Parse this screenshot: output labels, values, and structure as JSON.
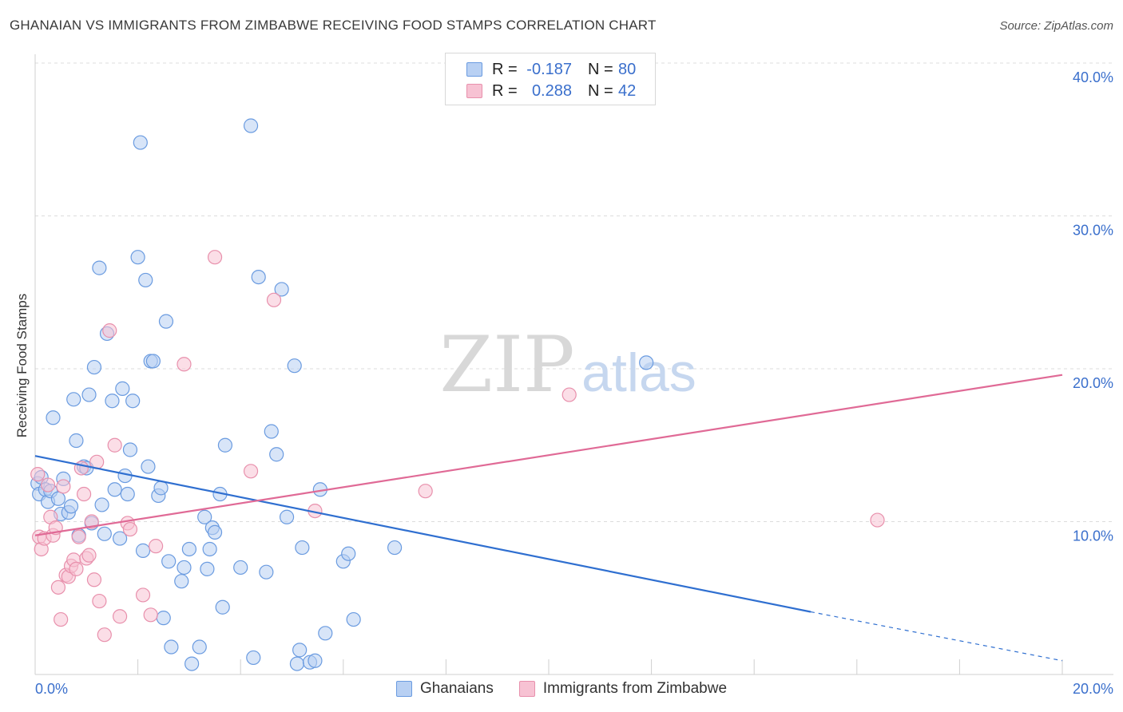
{
  "chart_data": {
    "type": "scatter",
    "title": "GHANAIAN VS IMMIGRANTS FROM ZIMBABWE RECEIVING FOOD STAMPS CORRELATION CHART",
    "source": "Source: ZipAtlas.com",
    "xlabel": "",
    "ylabel": "Receiving Food Stamps",
    "xlim": [
      0,
      20
    ],
    "ylim": [
      0,
      40
    ],
    "x_tick_labels": [
      "0.0%",
      "20.0%"
    ],
    "y_tick_labels": [
      "10.0%",
      "20.0%",
      "30.0%",
      "40.0%"
    ],
    "y_ticks": [
      10,
      20,
      30,
      40
    ],
    "grid": true,
    "watermark": "ZIPatlas",
    "legend": {
      "position": "top-center",
      "entries": [
        {
          "r_label": "R =",
          "r_value": "-0.187",
          "n_label": "N =",
          "n_value": "80"
        },
        {
          "r_label": "R =",
          "r_value": "0.288",
          "n_label": "N =",
          "n_value": "42"
        }
      ]
    },
    "series": [
      {
        "name": "Ghanaians",
        "color": "#6a9be0",
        "fill": "#b8d0f3",
        "line_color": "#2f6fd0",
        "trend": {
          "x0": 0,
          "y0": 14.3,
          "x1": 15.1,
          "y1": 4.1,
          "dashed_to_x": 20,
          "dashed_to_y": 0.9
        },
        "points": [
          [
            0.05,
            12.5
          ],
          [
            0.08,
            11.8
          ],
          [
            0.12,
            12.9
          ],
          [
            0.2,
            12.1
          ],
          [
            0.25,
            11.3
          ],
          [
            0.3,
            12.0
          ],
          [
            0.35,
            16.8
          ],
          [
            0.45,
            11.5
          ],
          [
            0.5,
            10.5
          ],
          [
            0.55,
            12.8
          ],
          [
            0.65,
            10.6
          ],
          [
            0.7,
            11.0
          ],
          [
            0.75,
            18.0
          ],
          [
            0.8,
            15.3
          ],
          [
            0.85,
            9.1
          ],
          [
            0.95,
            13.6
          ],
          [
            1.0,
            13.5
          ],
          [
            1.05,
            18.3
          ],
          [
            1.1,
            9.9
          ],
          [
            1.15,
            20.1
          ],
          [
            1.25,
            26.6
          ],
          [
            1.3,
            11.1
          ],
          [
            1.35,
            9.2
          ],
          [
            1.4,
            22.3
          ],
          [
            1.5,
            17.9
          ],
          [
            1.55,
            12.1
          ],
          [
            1.65,
            8.9
          ],
          [
            1.7,
            18.7
          ],
          [
            1.75,
            13.0
          ],
          [
            1.8,
            11.8
          ],
          [
            1.85,
            14.7
          ],
          [
            1.9,
            17.9
          ],
          [
            2.0,
            27.3
          ],
          [
            2.05,
            34.8
          ],
          [
            2.1,
            8.1
          ],
          [
            2.15,
            25.8
          ],
          [
            2.2,
            13.6
          ],
          [
            2.25,
            20.5
          ],
          [
            2.3,
            20.5
          ],
          [
            2.4,
            11.7
          ],
          [
            2.45,
            12.2
          ],
          [
            2.5,
            3.7
          ],
          [
            2.55,
            23.1
          ],
          [
            2.6,
            7.4
          ],
          [
            2.65,
            1.8
          ],
          [
            2.85,
            6.1
          ],
          [
            2.9,
            7.0
          ],
          [
            3.0,
            8.2
          ],
          [
            3.05,
            0.7
          ],
          [
            3.2,
            1.8
          ],
          [
            3.3,
            10.3
          ],
          [
            3.35,
            6.9
          ],
          [
            3.4,
            8.2
          ],
          [
            3.45,
            9.6
          ],
          [
            3.5,
            9.3
          ],
          [
            3.6,
            11.8
          ],
          [
            3.65,
            4.4
          ],
          [
            3.7,
            15.0
          ],
          [
            4.0,
            7.0
          ],
          [
            4.2,
            35.9
          ],
          [
            4.25,
            1.1
          ],
          [
            4.35,
            26.0
          ],
          [
            4.5,
            6.7
          ],
          [
            4.6,
            15.9
          ],
          [
            4.7,
            14.4
          ],
          [
            4.8,
            25.2
          ],
          [
            4.9,
            10.3
          ],
          [
            5.05,
            20.2
          ],
          [
            5.1,
            0.7
          ],
          [
            5.15,
            1.6
          ],
          [
            5.2,
            8.3
          ],
          [
            5.35,
            0.8
          ],
          [
            5.45,
            0.9
          ],
          [
            5.55,
            12.1
          ],
          [
            5.65,
            2.7
          ],
          [
            6.0,
            7.4
          ],
          [
            6.1,
            7.9
          ],
          [
            6.2,
            3.6
          ],
          [
            7.0,
            8.3
          ],
          [
            11.9,
            20.4
          ]
        ]
      },
      {
        "name": "Immigrants from Zimbabwe",
        "color": "#e890ac",
        "fill": "#f7c2d3",
        "line_color": "#e06a96",
        "trend": {
          "x0": 0,
          "y0": 9.1,
          "x1": 20,
          "y1": 19.6
        },
        "points": [
          [
            0.05,
            13.1
          ],
          [
            0.08,
            9.0
          ],
          [
            0.12,
            8.2
          ],
          [
            0.18,
            8.9
          ],
          [
            0.25,
            12.4
          ],
          [
            0.3,
            10.3
          ],
          [
            0.35,
            9.1
          ],
          [
            0.4,
            9.6
          ],
          [
            0.45,
            5.7
          ],
          [
            0.5,
            3.6
          ],
          [
            0.55,
            12.3
          ],
          [
            0.6,
            6.5
          ],
          [
            0.65,
            6.4
          ],
          [
            0.7,
            7.1
          ],
          [
            0.75,
            7.5
          ],
          [
            0.8,
            6.9
          ],
          [
            0.85,
            9.0
          ],
          [
            0.9,
            13.5
          ],
          [
            0.95,
            11.8
          ],
          [
            1.0,
            7.6
          ],
          [
            1.05,
            7.8
          ],
          [
            1.1,
            10.0
          ],
          [
            1.15,
            6.2
          ],
          [
            1.2,
            13.9
          ],
          [
            1.25,
            4.8
          ],
          [
            1.35,
            2.6
          ],
          [
            1.45,
            22.5
          ],
          [
            1.55,
            15.0
          ],
          [
            1.65,
            3.8
          ],
          [
            1.8,
            9.9
          ],
          [
            1.85,
            9.5
          ],
          [
            2.1,
            5.2
          ],
          [
            2.25,
            3.9
          ],
          [
            2.35,
            8.4
          ],
          [
            2.9,
            20.3
          ],
          [
            3.5,
            27.3
          ],
          [
            4.2,
            13.3
          ],
          [
            4.65,
            24.5
          ],
          [
            5.45,
            10.7
          ],
          [
            7.6,
            12.0
          ],
          [
            10.4,
            18.3
          ],
          [
            16.4,
            10.1
          ]
        ]
      }
    ]
  },
  "legend_bottom": [
    "Ghanaians",
    "Immigrants from Zimbabwe"
  ]
}
